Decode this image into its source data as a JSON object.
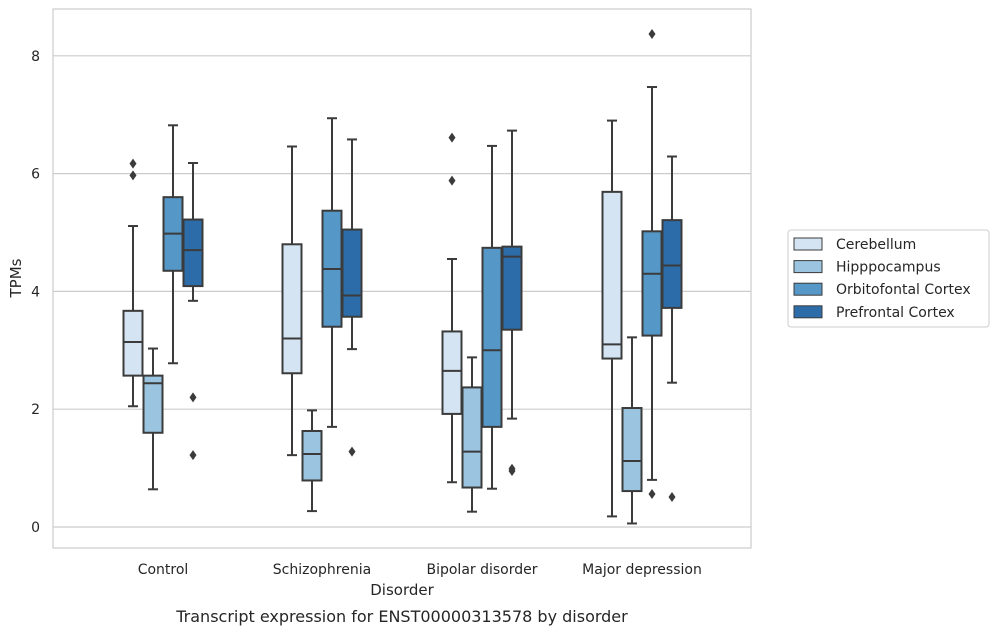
{
  "caption": "Transcript expression for ENST00000313578 by disorder",
  "chart_data": {
    "type": "box",
    "xlabel": "Disorder",
    "ylabel": "TPMs",
    "ylim": [
      -0.35,
      8.8
    ],
    "yticks": [
      0,
      2,
      4,
      6,
      8
    ],
    "grid": "horizontal",
    "legend_position": "right",
    "categories": [
      "Control",
      "Schizophrenia",
      "Bipolar disorder",
      "Major depression"
    ],
    "series": [
      {
        "name": "Cerebellum",
        "color": "#d4e4f3",
        "boxes": [
          {
            "whislo": 2.05,
            "q1": 2.57,
            "med": 3.14,
            "q3": 3.67,
            "whishi": 5.11,
            "fliers": [
              5.97,
              6.17
            ]
          },
          {
            "whislo": 1.22,
            "q1": 2.61,
            "med": 3.2,
            "q3": 4.8,
            "whishi": 6.46,
            "fliers": []
          },
          {
            "whislo": 0.76,
            "q1": 1.92,
            "med": 2.65,
            "q3": 3.32,
            "whishi": 4.55,
            "fliers": [
              5.88,
              6.61
            ]
          },
          {
            "whislo": 0.18,
            "q1": 2.86,
            "med": 3.1,
            "q3": 5.69,
            "whishi": 6.9,
            "fliers": []
          }
        ]
      },
      {
        "name": "Hipppocampus",
        "color": "#9ac4df",
        "boxes": [
          {
            "whislo": 0.64,
            "q1": 1.6,
            "med": 2.44,
            "q3": 2.57,
            "whishi": 3.03,
            "fliers": []
          },
          {
            "whislo": 0.27,
            "q1": 0.79,
            "med": 1.24,
            "q3": 1.63,
            "whishi": 1.98,
            "fliers": []
          },
          {
            "whislo": 0.26,
            "q1": 0.67,
            "med": 1.28,
            "q3": 2.37,
            "whishi": 2.88,
            "fliers": []
          },
          {
            "whislo": 0.06,
            "q1": 0.61,
            "med": 1.12,
            "q3": 2.02,
            "whishi": 3.22,
            "fliers": []
          }
        ]
      },
      {
        "name": "Orbitofontal Cortex",
        "color": "#5597c6",
        "boxes": [
          {
            "whislo": 2.78,
            "q1": 4.35,
            "med": 4.98,
            "q3": 5.6,
            "whishi": 6.82,
            "fliers": []
          },
          {
            "whislo": 1.7,
            "q1": 3.4,
            "med": 4.38,
            "q3": 5.37,
            "whishi": 6.94,
            "fliers": []
          },
          {
            "whislo": 0.65,
            "q1": 1.7,
            "med": 3.0,
            "q3": 4.74,
            "whishi": 6.47,
            "fliers": []
          },
          {
            "whislo": 0.8,
            "q1": 3.25,
            "med": 4.3,
            "q3": 5.02,
            "whishi": 7.47,
            "fliers": [
              0.56,
              8.37
            ]
          }
        ]
      },
      {
        "name": "Prefrontal Cortex",
        "color": "#2c6da9",
        "boxes": [
          {
            "whislo": 3.84,
            "q1": 4.09,
            "med": 4.7,
            "q3": 5.22,
            "whishi": 6.18,
            "fliers": [
              1.22,
              2.2
            ]
          },
          {
            "whislo": 3.02,
            "q1": 3.57,
            "med": 3.93,
            "q3": 5.05,
            "whishi": 6.58,
            "fliers": [
              1.28
            ]
          },
          {
            "whislo": 1.84,
            "q1": 3.35,
            "med": 4.59,
            "q3": 4.76,
            "whishi": 6.73,
            "fliers": [
              0.95,
              0.99
            ]
          },
          {
            "whislo": 2.45,
            "q1": 3.72,
            "med": 4.44,
            "q3": 5.21,
            "whishi": 6.29,
            "fliers": [
              0.51
            ]
          }
        ]
      }
    ]
  }
}
